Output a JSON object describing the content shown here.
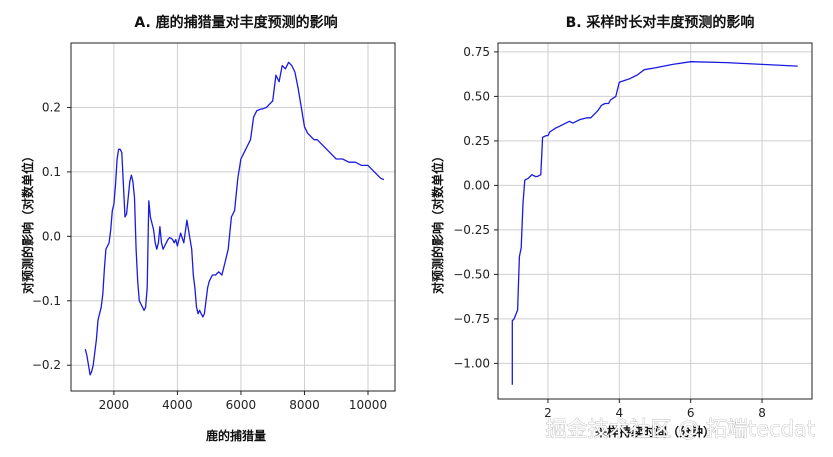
{
  "chart_data": [
    {
      "type": "line",
      "title": "A. 鹿的捕猎量对丰度预测的影响",
      "xlabel": "鹿的捕猎量",
      "ylabel": "对预测的影响（对数单位）",
      "xlim": [
        650,
        10850
      ],
      "ylim": [
        -0.24,
        0.3
      ],
      "xticks": [
        2000,
        4000,
        6000,
        8000,
        10000
      ],
      "yticks": [
        -0.2,
        -0.1,
        0.0,
        0.1,
        0.2
      ],
      "ytick_labels": [
        "−0.2",
        "−0.1",
        "0.0",
        "0.1",
        "0.2"
      ],
      "grid": true,
      "color": "#1a1ae0",
      "x": [
        1100,
        1150,
        1200,
        1250,
        1300,
        1350,
        1400,
        1450,
        1500,
        1550,
        1600,
        1650,
        1700,
        1750,
        1800,
        1850,
        1900,
        1950,
        2000,
        2050,
        2100,
        2150,
        2200,
        2250,
        2300,
        2350,
        2400,
        2450,
        2500,
        2550,
        2600,
        2650,
        2700,
        2750,
        2800,
        2850,
        2900,
        2950,
        3000,
        3050,
        3100,
        3150,
        3200,
        3250,
        3300,
        3350,
        3400,
        3450,
        3500,
        3550,
        3600,
        3650,
        3700,
        3750,
        3800,
        3850,
        3900,
        3950,
        4000,
        4100,
        4200,
        4300,
        4400,
        4450,
        4500,
        4550,
        4600,
        4650,
        4700,
        4750,
        4800,
        4850,
        4900,
        4950,
        5000,
        5100,
        5200,
        5300,
        5400,
        5500,
        5600,
        5700,
        5800,
        5900,
        6000,
        6100,
        6200,
        6300,
        6400,
        6500,
        6600,
        6700,
        6800,
        6900,
        7000,
        7100,
        7200,
        7300,
        7400,
        7500,
        7600,
        7700,
        7800,
        7900,
        8000,
        8100,
        8200,
        8300,
        8400,
        8500,
        8600,
        8700,
        8800,
        8900,
        9000,
        9200,
        9400,
        9600,
        9800,
        10000,
        10200,
        10300,
        10400,
        10500
      ],
      "y": [
        -0.175,
        -0.185,
        -0.2,
        -0.215,
        -0.21,
        -0.2,
        -0.18,
        -0.16,
        -0.13,
        -0.12,
        -0.11,
        -0.09,
        -0.05,
        -0.02,
        -0.015,
        -0.01,
        0.01,
        0.04,
        0.05,
        0.08,
        0.12,
        0.135,
        0.135,
        0.13,
        0.08,
        0.03,
        0.035,
        0.06,
        0.085,
        0.095,
        0.085,
        0.06,
        -0.02,
        -0.07,
        -0.1,
        -0.105,
        -0.11,
        -0.115,
        -0.11,
        -0.08,
        0.055,
        0.03,
        0.02,
        0.01,
        -0.01,
        -0.02,
        -0.01,
        0.015,
        -0.01,
        -0.02,
        -0.015,
        -0.01,
        -0.005,
        -0.002,
        -0.003,
        -0.005,
        -0.01,
        -0.005,
        -0.015,
        0.005,
        -0.01,
        0.025,
        -0.005,
        -0.02,
        -0.06,
        -0.08,
        -0.11,
        -0.12,
        -0.115,
        -0.12,
        -0.125,
        -0.12,
        -0.1,
        -0.08,
        -0.07,
        -0.06,
        -0.06,
        -0.055,
        -0.06,
        -0.04,
        -0.02,
        0.03,
        0.04,
        0.09,
        0.12,
        0.13,
        0.14,
        0.15,
        0.185,
        0.195,
        0.197,
        0.198,
        0.2,
        0.205,
        0.21,
        0.25,
        0.24,
        0.265,
        0.26,
        0.27,
        0.265,
        0.255,
        0.23,
        0.2,
        0.17,
        0.16,
        0.155,
        0.15,
        0.15,
        0.145,
        0.14,
        0.135,
        0.13,
        0.125,
        0.12,
        0.12,
        0.115,
        0.115,
        0.11,
        0.11,
        0.1,
        0.095,
        0.09,
        0.088
      ]
    },
    {
      "type": "line",
      "title": "B. 采样时长对丰度预测的影响",
      "xlabel": "采样持续时间（分钟）",
      "ylabel": "对预测的影响（对数单位）",
      "xlim": [
        0.6,
        9.4
      ],
      "ylim": [
        -1.2,
        0.8
      ],
      "xticks": [
        2,
        4,
        6,
        8
      ],
      "yticks": [
        -1.0,
        -0.75,
        -0.5,
        -0.25,
        0.0,
        0.25,
        0.5,
        0.75
      ],
      "ytick_labels": [
        "−1.00",
        "−0.75",
        "−0.50",
        "−0.25",
        "0.00",
        "0.25",
        "0.50",
        "0.75"
      ],
      "grid": true,
      "color": "#1a1ae0",
      "x": [
        1.0,
        1.0,
        1.05,
        1.15,
        1.2,
        1.25,
        1.3,
        1.35,
        1.45,
        1.5,
        1.55,
        1.65,
        1.7,
        1.8,
        1.85,
        1.95,
        2.0,
        2.05,
        2.2,
        2.3,
        2.4,
        2.6,
        2.7,
        2.9,
        3.1,
        3.2,
        3.4,
        3.5,
        3.6,
        3.7,
        3.75,
        3.9,
        4.0,
        4.3,
        4.5,
        4.7,
        5.0,
        5.5,
        6.0,
        7.0,
        8.0,
        9.0
      ],
      "y": [
        -1.12,
        -0.76,
        -0.75,
        -0.7,
        -0.4,
        -0.35,
        -0.1,
        0.03,
        0.04,
        0.05,
        0.06,
        0.05,
        0.05,
        0.06,
        0.27,
        0.28,
        0.28,
        0.3,
        0.32,
        0.33,
        0.34,
        0.36,
        0.35,
        0.37,
        0.38,
        0.38,
        0.42,
        0.45,
        0.46,
        0.46,
        0.48,
        0.5,
        0.58,
        0.6,
        0.62,
        0.65,
        0.66,
        0.68,
        0.695,
        0.69,
        0.68,
        0.67
      ]
    }
  ],
  "watermark": "掘金技术社区 @ 拓端tecdat"
}
